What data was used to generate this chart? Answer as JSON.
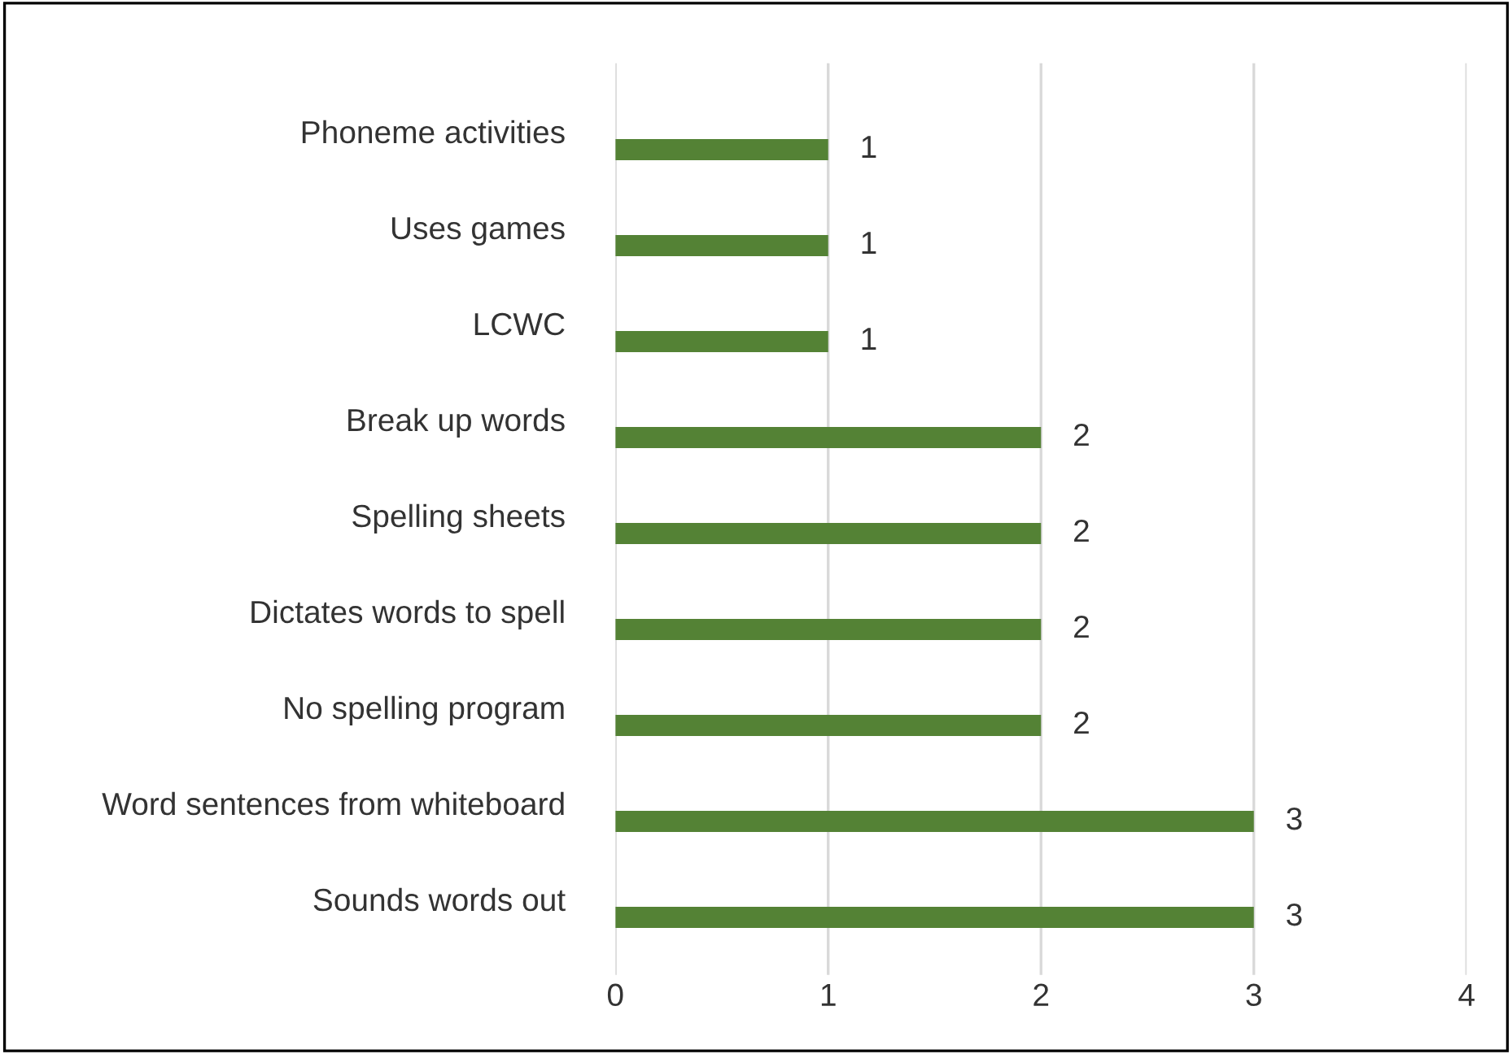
{
  "chart_data": {
    "type": "bar",
    "orientation": "horizontal",
    "categories": [
      "Phoneme activities",
      "Uses games",
      "LCWC",
      "Break up words",
      "Spelling sheets",
      "Dictates words to spell",
      "No spelling program",
      "Word sentences from whiteboard",
      "Sounds words out"
    ],
    "values": [
      1,
      1,
      1,
      2,
      2,
      2,
      2,
      3,
      3
    ],
    "color": "#548235",
    "xlim": [
      0,
      4
    ],
    "xticks": [
      0,
      1,
      2,
      3,
      4
    ],
    "grid": "x",
    "data_labels": true
  }
}
